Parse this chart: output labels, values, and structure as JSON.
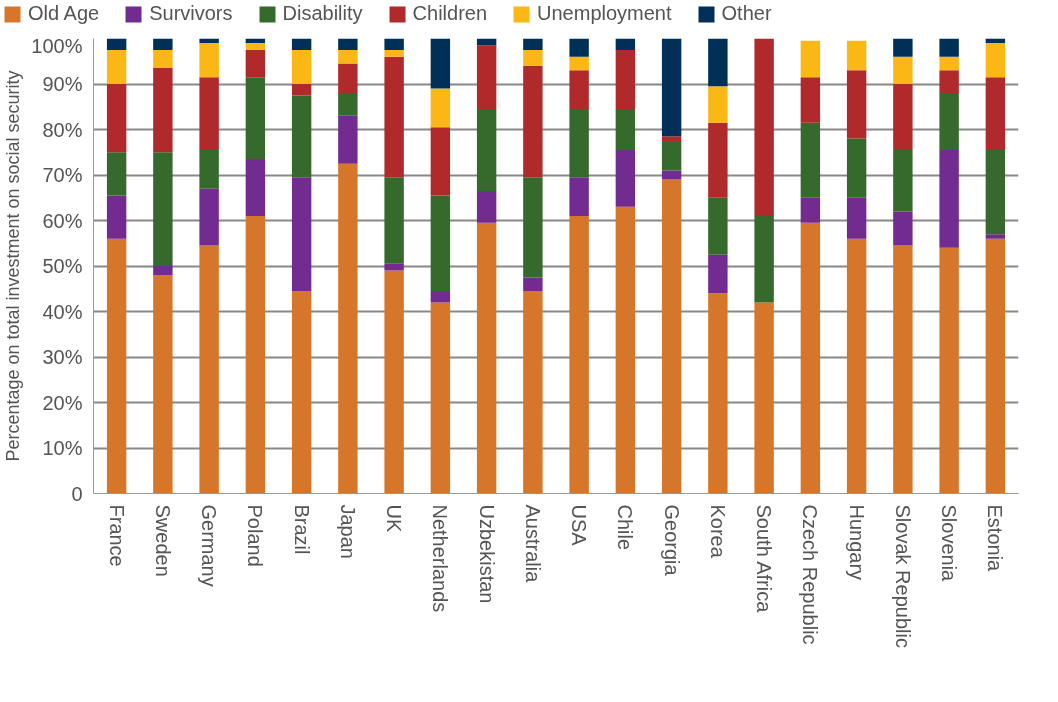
{
  "chart_data": {
    "type": "bar",
    "stacked": true,
    "ylabel": "Percentage on total investment on social security",
    "categories": [
      "France",
      "Sweden",
      "Germany",
      "Poland",
      "Brazil",
      "Japan",
      "UK",
      "Netherlands",
      "Uzbekistan",
      "Australia",
      "USA",
      "Chile",
      "Georgia",
      "Korea",
      "South Africa",
      "Czech Republic",
      "Hungary",
      "Slovak Republic",
      "Slovenia",
      "Estonia"
    ],
    "series": [
      {
        "name": "Old Age",
        "color": "#d6762a",
        "values": [
          56,
          48,
          54.5,
          61,
          44.5,
          72.5,
          49,
          42,
          59.5,
          44.5,
          61,
          63,
          69,
          44,
          42,
          59.5,
          56,
          54.5,
          54,
          56
        ]
      },
      {
        "name": "Survivors",
        "color": "#722c8f",
        "values": [
          9.5,
          2,
          12.5,
          12.5,
          25,
          10.5,
          1.5,
          2.5,
          7,
          3,
          8.5,
          12.5,
          2,
          8.5,
          0,
          5.5,
          9,
          7.5,
          21.5,
          1
        ]
      },
      {
        "name": "Disability",
        "color": "#36692c",
        "values": [
          9.5,
          25,
          8.5,
          18,
          18,
          5,
          19,
          21,
          18,
          22,
          15,
          9,
          6.5,
          12.5,
          19,
          16.5,
          13,
          13.5,
          12.5,
          18.5
        ]
      },
      {
        "name": "Children",
        "color": "#b0292b",
        "values": [
          15,
          18.5,
          16,
          6,
          2.5,
          6.5,
          26.5,
          15,
          14,
          24.5,
          8.5,
          13,
          1,
          16.5,
          39,
          10,
          15,
          14.5,
          5,
          16
        ]
      },
      {
        "name": "Unemployment",
        "color": "#fbb716",
        "values": [
          7.5,
          4,
          7.5,
          1.5,
          7.5,
          3,
          1.5,
          8.5,
          0,
          3.5,
          3,
          0,
          0,
          8,
          0,
          8,
          6.5,
          6,
          3,
          7.5
        ]
      },
      {
        "name": "Other",
        "color": "#003057",
        "values": [
          2.5,
          2.5,
          1,
          1,
          2.5,
          2.5,
          2.5,
          11,
          1.5,
          2.5,
          4,
          2.5,
          21.5,
          10.5,
          0,
          0,
          0,
          4,
          4,
          1
        ]
      }
    ],
    "ylim": [
      0,
      100
    ],
    "yticks": [
      0,
      {
        "value": 10,
        "label": "10%"
      },
      {
        "value": 20,
        "label": "20%"
      },
      {
        "value": 30,
        "label": "30%"
      },
      {
        "value": 40,
        "label": "40%"
      },
      {
        "value": 50,
        "label": "50%"
      },
      {
        "value": 60,
        "label": "60%"
      },
      {
        "value": 70,
        "label": "70%"
      },
      {
        "value": 80,
        "label": "80%"
      },
      {
        "value": 90,
        "label": "90%"
      },
      {
        "value": 100,
        "label": "100%"
      }
    ],
    "grid": "y",
    "legend": "top"
  }
}
